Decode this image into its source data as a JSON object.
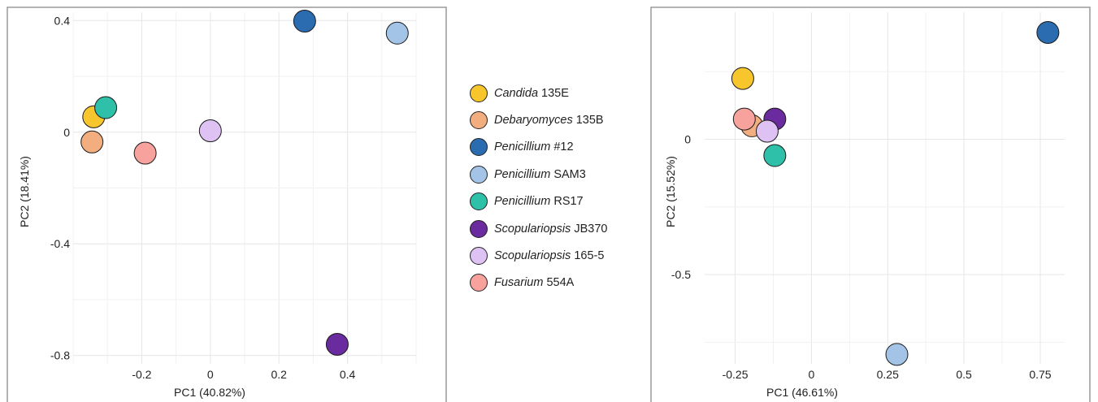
{
  "legend": {
    "items": [
      {
        "genus": "Candida",
        "strain": " 135E",
        "color": "#F7C52C"
      },
      {
        "genus": "Debaryomyces",
        "strain": " 135B",
        "color": "#F2AE7E"
      },
      {
        "genus": "Penicillium",
        "strain": " #12",
        "color": "#2B6CB0"
      },
      {
        "genus": "Penicillium",
        "strain": " SAM3",
        "color": "#A3C4E6"
      },
      {
        "genus": "Penicillium",
        "strain": " RS17",
        "color": "#2EC0A8"
      },
      {
        "genus": "Scopulariopsis",
        "strain": " JB370",
        "color": "#6A2B9E"
      },
      {
        "genus": "Scopulariopsis",
        "strain": " 165-5",
        "color": "#DFC2F4"
      },
      {
        "genus": "Fusarium",
        "strain": " 554A",
        "color": "#F8A29E"
      }
    ]
  },
  "chart_data": [
    {
      "type": "scatter",
      "xlabel": "PC1 (40.82%)",
      "ylabel": "PC2 (18.41%)",
      "xlim": [
        -0.4,
        0.6
      ],
      "ylim": [
        -0.83,
        0.43
      ],
      "xticks": [
        -0.2,
        0,
        0.2,
        0.4
      ],
      "xtick_labels": [
        "-0.2",
        "0",
        "0.2",
        "0.4"
      ],
      "yticks": [
        -0.8,
        -0.4,
        0,
        0.4
      ],
      "ytick_labels": [
        "-0.8",
        "-0.4",
        "0",
        "0.4"
      ],
      "grid": true,
      "points": [
        {
          "label": "Candida 135E",
          "x": -0.34,
          "y": 0.055,
          "color": "#F7C52C"
        },
        {
          "label": "Debaryomyces 135B",
          "x": -0.345,
          "y": -0.035,
          "color": "#F2AE7E"
        },
        {
          "label": "Penicillium #12",
          "x": 0.275,
          "y": 0.398,
          "color": "#2B6CB0"
        },
        {
          "label": "Penicillium SAM3",
          "x": 0.545,
          "y": 0.355,
          "color": "#A3C4E6"
        },
        {
          "label": "Penicillium RS17",
          "x": -0.305,
          "y": 0.088,
          "color": "#2EC0A8"
        },
        {
          "label": "Scopulariopsis JB370",
          "x": 0.37,
          "y": -0.76,
          "color": "#6A2B9E"
        },
        {
          "label": "Scopulariopsis 165-5",
          "x": 0.0,
          "y": 0.005,
          "color": "#DFC2F4"
        },
        {
          "label": "Fusarium 554A",
          "x": -0.19,
          "y": -0.075,
          "color": "#F8A29E"
        }
      ]
    },
    {
      "type": "scatter",
      "xlabel": "PC1 (46.61%)",
      "ylabel": "PC2 (15.52%)",
      "xlim": [
        -0.35,
        0.83
      ],
      "ylim": [
        -0.83,
        0.47
      ],
      "xticks": [
        -0.25,
        0,
        0.25,
        0.5,
        0.75
      ],
      "xtick_labels": [
        "-0.25",
        "0",
        "0.25",
        "0.5",
        "0.75"
      ],
      "yticks": [
        -0.5,
        0
      ],
      "ytick_labels": [
        "-0.5",
        "0"
      ],
      "grid": true,
      "points": [
        {
          "label": "Candida 135E",
          "x": -0.225,
          "y": 0.225,
          "color": "#F7C52C"
        },
        {
          "label": "Debaryomyces 135B",
          "x": -0.195,
          "y": 0.05,
          "color": "#F2AE7E"
        },
        {
          "label": "Penicillium #12",
          "x": 0.775,
          "y": 0.395,
          "color": "#2B6CB0"
        },
        {
          "label": "Penicillium SAM3",
          "x": 0.28,
          "y": -0.795,
          "color": "#A3C4E6"
        },
        {
          "label": "Penicillium RS17",
          "x": -0.12,
          "y": -0.06,
          "color": "#2EC0A8"
        },
        {
          "label": "Scopulariopsis JB370",
          "x": -0.12,
          "y": 0.075,
          "color": "#6A2B9E"
        },
        {
          "label": "Scopulariopsis 165-5",
          "x": -0.145,
          "y": 0.03,
          "color": "#DFC2F4"
        },
        {
          "label": "Fusarium 554A",
          "x": -0.22,
          "y": 0.075,
          "color": "#F8A29E"
        }
      ]
    }
  ]
}
